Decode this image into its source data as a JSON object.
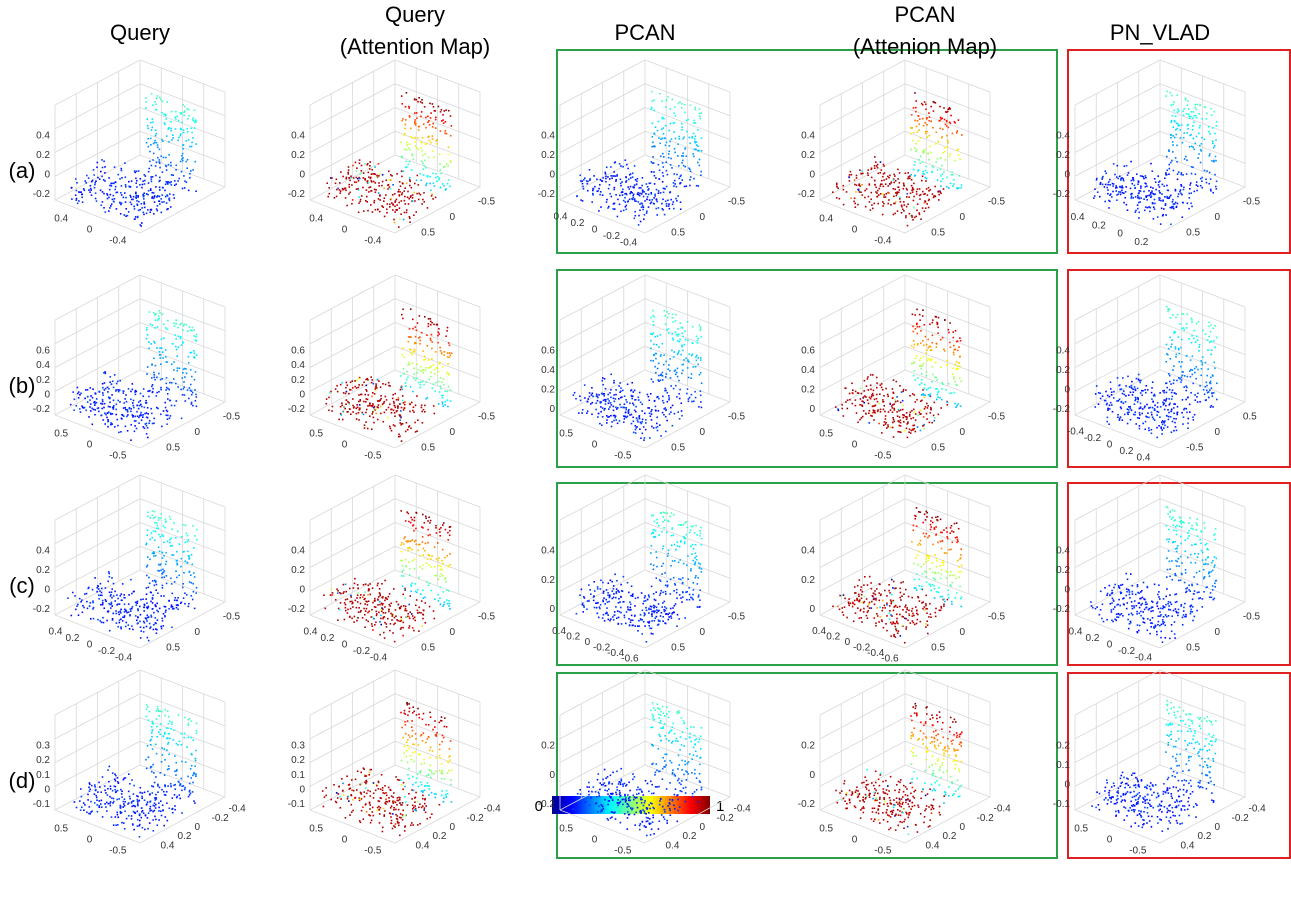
{
  "columns": [
    [
      "Query"
    ],
    [
      "Query",
      "(Attention Map)"
    ],
    [
      "PCAN"
    ],
    [
      "PCAN",
      "(Attenion Map)"
    ],
    [
      "PN_VLAD"
    ]
  ],
  "rows": [
    "(a)",
    "(b)",
    "(c)",
    "(d)"
  ],
  "colorbar": {
    "min": "0",
    "max": "1"
  },
  "panels": [
    [
      {
        "z": [
          "0.4",
          "0.2",
          "0",
          "-0.2"
        ],
        "front": [
          "0.4",
          "0",
          "-0.4"
        ],
        "side": []
      },
      {
        "z": [
          "0.4",
          "0.2",
          "0",
          "-0.2"
        ],
        "front": [
          "0.4",
          "0",
          "-0.4"
        ],
        "side": [
          "-0.5",
          "0",
          "0.5"
        ]
      },
      {
        "z": [
          "0.4",
          "0.2",
          "0",
          "-0.2"
        ],
        "front": [
          "0.4",
          "0.2",
          "0",
          "-0.2",
          "-0.4"
        ],
        "side": [
          "-0.5",
          "0",
          "0.5"
        ]
      },
      {
        "z": [
          "0.4",
          "0.2",
          "0",
          "-0.2"
        ],
        "front": [
          "0.4",
          "0",
          "-0.4"
        ],
        "side": [
          "-0.5",
          "0",
          "0.5"
        ]
      },
      {
        "z": [
          "0.4",
          "0.2",
          "0",
          "-0.2"
        ],
        "front": [
          "0.4",
          "0.2",
          "0",
          "0.2"
        ],
        "side": [
          "-0.5",
          "0",
          "0.5"
        ]
      }
    ],
    [
      {
        "z": [
          "0.6",
          "0.4",
          "0.2",
          "0",
          "-0.2"
        ],
        "front": [
          "0.5",
          "0",
          "-0.5"
        ],
        "side": [
          "-0.5",
          "0",
          "0.5"
        ]
      },
      {
        "z": [
          "0.6",
          "0.4",
          "0.2",
          "0",
          "-0.2"
        ],
        "front": [
          "0.5",
          "0",
          "-0.5"
        ],
        "side": [
          "-0.5",
          "0",
          "0.5"
        ]
      },
      {
        "z": [
          "0.6",
          "0.4",
          "0.2",
          "0"
        ],
        "front": [
          "0.5",
          "0",
          "-0.5"
        ],
        "side": [
          "-0.5",
          "0",
          "0.5"
        ]
      },
      {
        "z": [
          "0.6",
          "0.4",
          "0.2",
          "0"
        ],
        "front": [
          "0.5",
          "0",
          "-0.5"
        ],
        "side": [
          "-0.5",
          "0",
          "0.5"
        ]
      },
      {
        "z": [
          "0.4",
          "0.2",
          "0",
          "-0.2"
        ],
        "front": [
          "-0.4",
          "-0.2",
          "0",
          "0.2",
          "0.4"
        ],
        "side": [
          "0.5",
          "0",
          "-0.5"
        ]
      }
    ],
    [
      {
        "z": [
          "0.4",
          "0.2",
          "0",
          "-0.2"
        ],
        "front": [
          "0.4",
          "0.2",
          "0",
          "-0.2",
          "-0.4"
        ],
        "side": [
          "-0.5",
          "0",
          "0.5"
        ]
      },
      {
        "z": [
          "0.4",
          "0.2",
          "0",
          "-0.2"
        ],
        "front": [
          "0.4",
          "0.2",
          "0",
          "-0.2",
          "-0.4"
        ],
        "side": [
          "-0.5",
          "0",
          "0.5"
        ]
      },
      {
        "z": [
          "0.4",
          "0.2",
          "0"
        ],
        "front": [
          "0.4",
          "0.2",
          "0",
          "-0.2",
          "-0.4",
          "-0.6"
        ],
        "side": [
          "-0.5",
          "0",
          "0.5"
        ]
      },
      {
        "z": [
          "0.4",
          "0.2",
          "0"
        ],
        "front": [
          "0.4",
          "0.2",
          "0",
          "-0.2",
          "-0.4",
          "-0.6"
        ],
        "side": [
          "-0.5",
          "0",
          "0.5"
        ]
      },
      {
        "z": [
          "0.4",
          "0.2",
          "0",
          "-0.2"
        ],
        "front": [
          "0.4",
          "0.2",
          "0",
          "-0.2",
          "-0.4"
        ],
        "side": [
          "-0.5",
          "0",
          "0.5"
        ]
      }
    ],
    [
      {
        "z": [
          "0.3",
          "0.2",
          "0.1",
          "0",
          "-0.1"
        ],
        "front": [
          "0.5",
          "0",
          "-0.5"
        ],
        "side": [
          "-0.4",
          "-0.2",
          "0",
          "0.2",
          "0.4"
        ]
      },
      {
        "z": [
          "0.3",
          "0.2",
          "0.1",
          "0",
          "-0.1"
        ],
        "front": [
          "0.5",
          "0",
          "-0.5"
        ],
        "side": [
          "-0.4",
          "-0.2",
          "0",
          "0.2",
          "0.4"
        ]
      },
      {
        "z": [
          "0.2",
          "0",
          "-0.2"
        ],
        "front": [
          "0.5",
          "0",
          "-0.5"
        ],
        "side": [
          "-0.4",
          "-0.2",
          "0",
          "0.2",
          "0.4"
        ]
      },
      {
        "z": [
          "0.2",
          "0",
          "-0.2"
        ],
        "front": [
          "0.5",
          "0",
          "-0.5"
        ],
        "side": [
          "-0.4",
          "-0.2",
          "0",
          "0.2",
          "0.4"
        ]
      },
      {
        "z": [
          "0.2",
          "0.1",
          "0",
          "-0.1"
        ],
        "front": [
          "0.5",
          "0",
          "-0.5"
        ],
        "side": [
          "-0.4",
          "-0.2",
          "0",
          "0.2",
          "0.4"
        ]
      }
    ]
  ]
}
